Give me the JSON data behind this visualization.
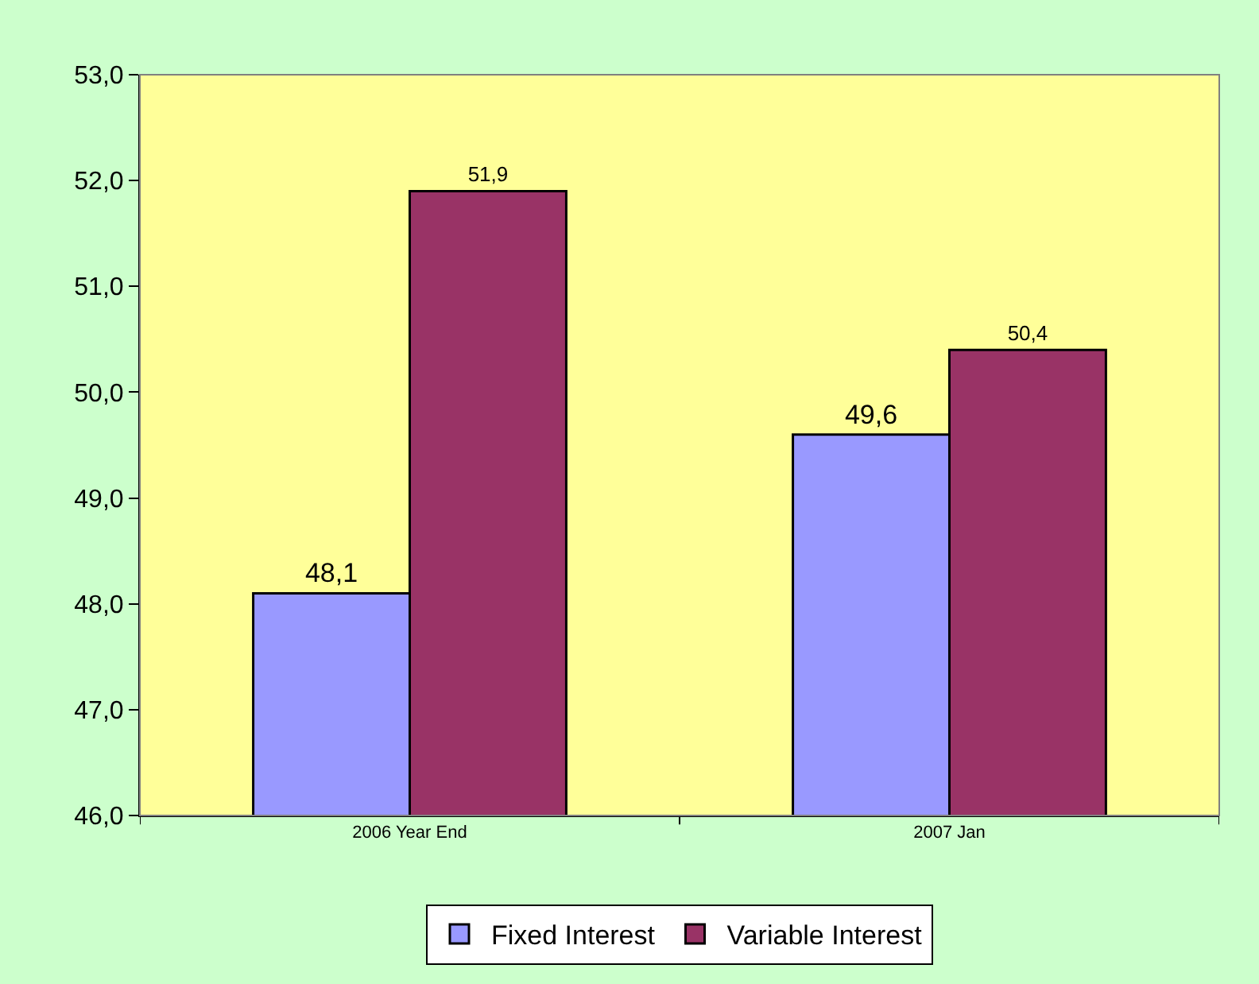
{
  "chart_data": {
    "type": "bar",
    "categories": [
      "2006 Year End",
      "2007 Jan"
    ],
    "series": [
      {
        "name": "Fixed Interest",
        "color": "#9999ff",
        "values": [
          48.1,
          49.6
        ],
        "value_labels": [
          "48,1",
          "49,6"
        ]
      },
      {
        "name": "Variable Interest",
        "color": "#993366",
        "values": [
          51.9,
          50.4
        ],
        "value_labels": [
          "51,9",
          "50,4"
        ]
      }
    ],
    "ylim": [
      46,
      53
    ],
    "yticks": [
      {
        "value": 46,
        "label": "46,0"
      },
      {
        "value": 47,
        "label": "47,0"
      },
      {
        "value": 48,
        "label": "48,0"
      },
      {
        "value": 49,
        "label": "49,0"
      },
      {
        "value": 50,
        "label": "50,0"
      },
      {
        "value": 51,
        "label": "51,0"
      },
      {
        "value": 52,
        "label": "52,0"
      },
      {
        "value": 53,
        "label": "53,0"
      }
    ],
    "grid": false,
    "legend": "bottom"
  }
}
